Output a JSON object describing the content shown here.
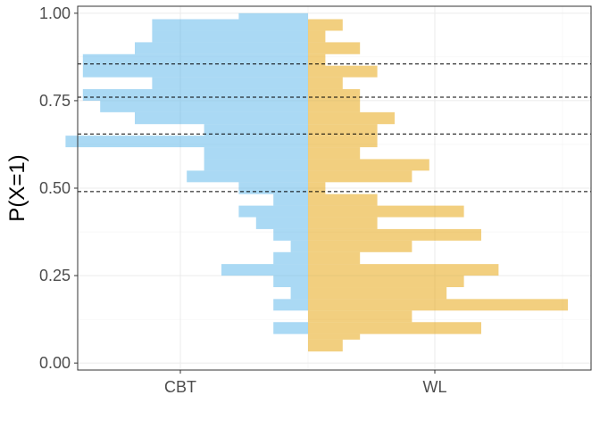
{
  "chart_data": {
    "type": "bar",
    "subtype": "mirrored-horizontal-histogram",
    "xlabel": "",
    "ylabel": "P(X=1)",
    "ylim": [
      -0.02,
      1.02
    ],
    "y_ticks": [
      0.0,
      0.25,
      0.5,
      0.75,
      1.0
    ],
    "y_tick_labels": [
      "0.00",
      "0.25",
      "0.50",
      "0.75",
      "1.00"
    ],
    "categories": [
      "CBT",
      "WL"
    ],
    "grid": true,
    "legend": "none",
    "bin_width": 0.05,
    "reference_lines": [
      0.49,
      0.655,
      0.76,
      0.855
    ],
    "series": [
      {
        "group": "CBT",
        "color": "#56B4E9",
        "direction": "left",
        "bins": [
          {
            "y0": 0.083,
            "y1": 0.117,
            "count": 2
          },
          {
            "y0": 0.15,
            "y1": 0.183,
            "count": 2
          },
          {
            "y0": 0.183,
            "y1": 0.217,
            "count": 1
          },
          {
            "y0": 0.217,
            "y1": 0.25,
            "count": 2
          },
          {
            "y0": 0.25,
            "y1": 0.283,
            "count": 5
          },
          {
            "y0": 0.283,
            "y1": 0.317,
            "count": 2
          },
          {
            "y0": 0.317,
            "y1": 0.35,
            "count": 1
          },
          {
            "y0": 0.35,
            "y1": 0.383,
            "count": 2
          },
          {
            "y0": 0.383,
            "y1": 0.417,
            "count": 3
          },
          {
            "y0": 0.417,
            "y1": 0.45,
            "count": 4
          },
          {
            "y0": 0.45,
            "y1": 0.483,
            "count": 2
          },
          {
            "y0": 0.483,
            "y1": 0.517,
            "count": 4
          },
          {
            "y0": 0.517,
            "y1": 0.55,
            "count": 7
          },
          {
            "y0": 0.55,
            "y1": 0.583,
            "count": 6
          },
          {
            "y0": 0.583,
            "y1": 0.617,
            "count": 6
          },
          {
            "y0": 0.617,
            "y1": 0.65,
            "count": 14
          },
          {
            "y0": 0.65,
            "y1": 0.683,
            "count": 6
          },
          {
            "y0": 0.683,
            "y1": 0.717,
            "count": 10
          },
          {
            "y0": 0.717,
            "y1": 0.75,
            "count": 12
          },
          {
            "y0": 0.75,
            "y1": 0.783,
            "count": 13
          },
          {
            "y0": 0.783,
            "y1": 0.817,
            "count": 9
          },
          {
            "y0": 0.817,
            "y1": 0.85,
            "count": 13
          },
          {
            "y0": 0.85,
            "y1": 0.883,
            "count": 13
          },
          {
            "y0": 0.883,
            "y1": 0.917,
            "count": 10
          },
          {
            "y0": 0.917,
            "y1": 0.95,
            "count": 9
          },
          {
            "y0": 0.95,
            "y1": 0.983,
            "count": 9
          },
          {
            "y0": 0.983,
            "y1": 1.0,
            "count": 4
          }
        ]
      },
      {
        "group": "WL",
        "color": "#E69F00",
        "direction": "right",
        "bins": [
          {
            "y0": 0.033,
            "y1": 0.067,
            "count": 2
          },
          {
            "y0": 0.067,
            "y1": 0.083,
            "count": 3
          },
          {
            "y0": 0.083,
            "y1": 0.117,
            "count": 10
          },
          {
            "y0": 0.117,
            "y1": 0.15,
            "count": 6
          },
          {
            "y0": 0.15,
            "y1": 0.183,
            "count": 15
          },
          {
            "y0": 0.183,
            "y1": 0.217,
            "count": 8
          },
          {
            "y0": 0.217,
            "y1": 0.25,
            "count": 9
          },
          {
            "y0": 0.25,
            "y1": 0.283,
            "count": 11
          },
          {
            "y0": 0.283,
            "y1": 0.317,
            "count": 3
          },
          {
            "y0": 0.317,
            "y1": 0.35,
            "count": 6
          },
          {
            "y0": 0.35,
            "y1": 0.383,
            "count": 10
          },
          {
            "y0": 0.383,
            "y1": 0.417,
            "count": 4
          },
          {
            "y0": 0.417,
            "y1": 0.45,
            "count": 9
          },
          {
            "y0": 0.45,
            "y1": 0.483,
            "count": 4
          },
          {
            "y0": 0.483,
            "y1": 0.517,
            "count": 1
          },
          {
            "y0": 0.517,
            "y1": 0.55,
            "count": 6
          },
          {
            "y0": 0.55,
            "y1": 0.583,
            "count": 7
          },
          {
            "y0": 0.583,
            "y1": 0.617,
            "count": 3
          },
          {
            "y0": 0.617,
            "y1": 0.65,
            "count": 4
          },
          {
            "y0": 0.65,
            "y1": 0.683,
            "count": 4
          },
          {
            "y0": 0.683,
            "y1": 0.717,
            "count": 5
          },
          {
            "y0": 0.717,
            "y1": 0.75,
            "count": 3
          },
          {
            "y0": 0.75,
            "y1": 0.783,
            "count": 3
          },
          {
            "y0": 0.783,
            "y1": 0.817,
            "count": 2
          },
          {
            "y0": 0.817,
            "y1": 0.85,
            "count": 4
          },
          {
            "y0": 0.85,
            "y1": 0.883,
            "count": 1
          },
          {
            "y0": 0.883,
            "y1": 0.917,
            "count": 3
          },
          {
            "y0": 0.917,
            "y1": 0.95,
            "count": 1
          },
          {
            "y0": 0.95,
            "y1": 0.983,
            "count": 2
          }
        ]
      }
    ]
  }
}
